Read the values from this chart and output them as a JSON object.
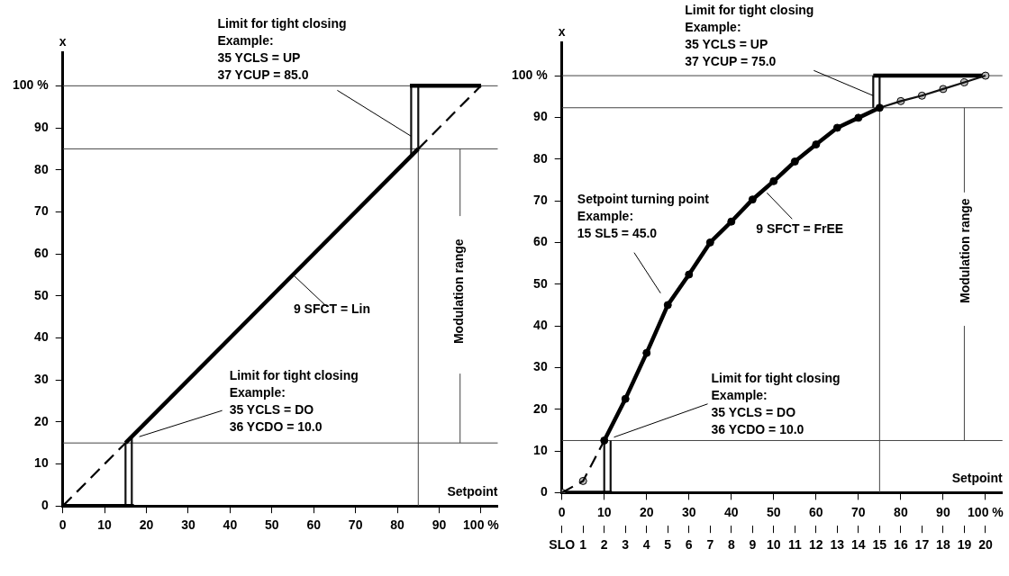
{
  "chart_data": [
    {
      "type": "line",
      "ylabel": "x",
      "xlabel": "Setpoint",
      "xlim": [
        0,
        104
      ],
      "ylim": [
        0,
        108
      ],
      "xticks": [
        0,
        10,
        20,
        30,
        40,
        50,
        60,
        70,
        80,
        90,
        {
          "value": 100,
          "label": "100 %"
        }
      ],
      "yticks": [
        0,
        10,
        20,
        30,
        40,
        50,
        60,
        70,
        80,
        90,
        {
          "value": 100,
          "label": "100 %"
        }
      ],
      "legend": false,
      "ref_lines": [
        {
          "axis": "y",
          "value": 100,
          "color": "#444444"
        },
        {
          "axis": "y",
          "value": 85,
          "color": "#444444"
        },
        {
          "axis": "y",
          "value": 15,
          "color": "#444444"
        }
      ],
      "series": [
        {
          "x": [
            0,
            15
          ],
          "values": [
            0,
            15
          ],
          "color": "#000000",
          "line_style": "dashed",
          "marker": "none"
        },
        {
          "x": [
            85,
            100
          ],
          "values": [
            85,
            100
          ],
          "color": "#000000",
          "line_style": "dashed",
          "marker": "none"
        },
        {
          "x": [
            15,
            85
          ],
          "values": [
            15,
            85
          ],
          "color": "#000000",
          "marker": "none"
        },
        {
          "x": [
            0,
            17
          ],
          "values": [
            0,
            0
          ],
          "color": "#000000",
          "marker": "none"
        },
        {
          "x": [
            83,
            100
          ],
          "values": [
            100,
            100
          ],
          "color": "#000000",
          "marker": "none"
        },
        {
          "x": [
            15,
            15
          ],
          "values": [
            0,
            15
          ],
          "color": "#111111",
          "marker": "none"
        },
        {
          "x": [
            16.5,
            16.5
          ],
          "values": [
            0,
            16.5
          ],
          "color": "#111111",
          "marker": "none"
        },
        {
          "x": [
            83.3,
            83.3
          ],
          "values": [
            83.3,
            100
          ],
          "color": "#111111",
          "marker": "none"
        },
        {
          "x": [
            85,
            85
          ],
          "values": [
            85,
            100
          ],
          "color": "#111111",
          "marker": "none"
        },
        {
          "x": [
            85,
            85
          ],
          "values": [
            0,
            85
          ],
          "color": "#444444",
          "marker": "none"
        },
        {
          "x": [
            95,
            95
          ],
          "values": [
            15,
            31.5
          ],
          "color": "#444444",
          "marker": "none"
        },
        {
          "x": [
            95,
            95
          ],
          "values": [
            69,
            85
          ],
          "color": "#444444",
          "marker": "none"
        }
      ],
      "annotations": [
        {
          "text": "Limit for tight closing\nExample:\n35 YCLS = UP\n37 YCUP = 85.0",
          "x": 83.3,
          "y": 88
        },
        {
          "text": "9 SFCT = Lin",
          "x": 55.4,
          "y": 54.7
        },
        {
          "text": "Limit for tight closing\nExample:\n35 YCLS = DO\n36 YCDO = 10.0",
          "x": 18.3,
          "y": 16.5
        },
        "Modulation range"
      ]
    },
    {
      "type": "line",
      "ylabel": "x",
      "xlabel": "Setpoint",
      "xlim": [
        0,
        104
      ],
      "ylim": [
        0,
        108
      ],
      "xticks": [
        0,
        10,
        20,
        30,
        40,
        50,
        60,
        70,
        80,
        90,
        {
          "value": 100,
          "label": "100 %"
        }
      ],
      "yticks": [
        0,
        10,
        20,
        30,
        40,
        50,
        60,
        70,
        80,
        90,
        {
          "value": 100,
          "label": "100 %"
        }
      ],
      "x2lim": [
        0,
        20.8
      ],
      "x2ticks": [
        {
          "value": 0,
          "label": "SLO"
        },
        1,
        2,
        3,
        4,
        5,
        6,
        7,
        8,
        9,
        10,
        11,
        12,
        13,
        14,
        15,
        16,
        17,
        18,
        19,
        20
      ],
      "legend": false,
      "ref_lines": [
        {
          "axis": "y",
          "value": 100,
          "color": "#444444"
        },
        {
          "axis": "y",
          "value": 92.3,
          "color": "#444444"
        },
        {
          "axis": "y",
          "value": 12.5,
          "color": "#444444"
        }
      ],
      "series": [
        {
          "x": [
            0,
            5,
            10
          ],
          "values": [
            0,
            2.8,
            12.5
          ],
          "color": "#000000",
          "line_style": "dashed",
          "marker": "none"
        },
        {
          "x": [
            10,
            15,
            20,
            25,
            30,
            35,
            40,
            45,
            50,
            55,
            60,
            65,
            70,
            75
          ],
          "values": [
            12.5,
            22.5,
            33.5,
            45,
            52.3,
            60,
            65,
            70.3,
            74.7,
            79.4,
            83.5,
            87.5,
            89.9,
            92.3
          ],
          "color": "#000000",
          "marker": "circle"
        },
        {
          "x": [
            75,
            80,
            85,
            90,
            95,
            100
          ],
          "values": [
            92.3,
            93.9,
            95.2,
            96.8,
            98.4,
            100
          ],
          "color": "#111111",
          "marker": "none"
        },
        {
          "type": "scatter",
          "x": [
            0,
            5,
            80,
            85,
            90,
            95,
            100
          ],
          "values": [
            0,
            2.8,
            93.9,
            95.2,
            96.8,
            98.4,
            100
          ],
          "color": "#bbbbbb",
          "marker": "circle"
        },
        {
          "x": [
            0,
            11.8
          ],
          "values": [
            0,
            0
          ],
          "color": "#000000",
          "marker": "none"
        },
        {
          "x": [
            73.5,
            100
          ],
          "values": [
            100,
            100
          ],
          "color": "#000000",
          "marker": "none"
        },
        {
          "x": [
            10,
            10
          ],
          "values": [
            0,
            12.5
          ],
          "color": "#111111",
          "marker": "none"
        },
        {
          "x": [
            11.5,
            11.5
          ],
          "values": [
            0,
            12.5
          ],
          "color": "#111111",
          "marker": "none"
        },
        {
          "x": [
            73.5,
            73.5
          ],
          "values": [
            92.3,
            100
          ],
          "color": "#111111",
          "marker": "none"
        },
        {
          "x": [
            75,
            75
          ],
          "values": [
            92.3,
            100
          ],
          "color": "#111111",
          "marker": "none"
        },
        {
          "x": [
            75,
            75
          ],
          "values": [
            0,
            92.3
          ],
          "color": "#444444",
          "marker": "none"
        },
        {
          "x": [
            95,
            95
          ],
          "values": [
            12.5,
            40
          ],
          "color": "#444444",
          "marker": "none"
        },
        {
          "x": [
            95,
            95
          ],
          "values": [
            72,
            92.3
          ],
          "color": "#444444",
          "marker": "none"
        }
      ],
      "annotations": [
        {
          "text": "Limit for tight closing\nExample:\n35 YCLS = UP\n37 YCUP = 75.0",
          "x": 73.5,
          "y": 95.2
        },
        "Setpoint turning point\nExample:\n15 SL5 = 45.0",
        {
          "text": "9 SFCT = FrEE",
          "x": 48.4,
          "y": 71.9
        },
        {
          "text": "Limit for tight closing\nExample:\n35 YCLS = DO\n36 YCDO = 10.0",
          "x": 12.3,
          "y": 13.3
        },
        "Modulation range"
      ]
    }
  ]
}
